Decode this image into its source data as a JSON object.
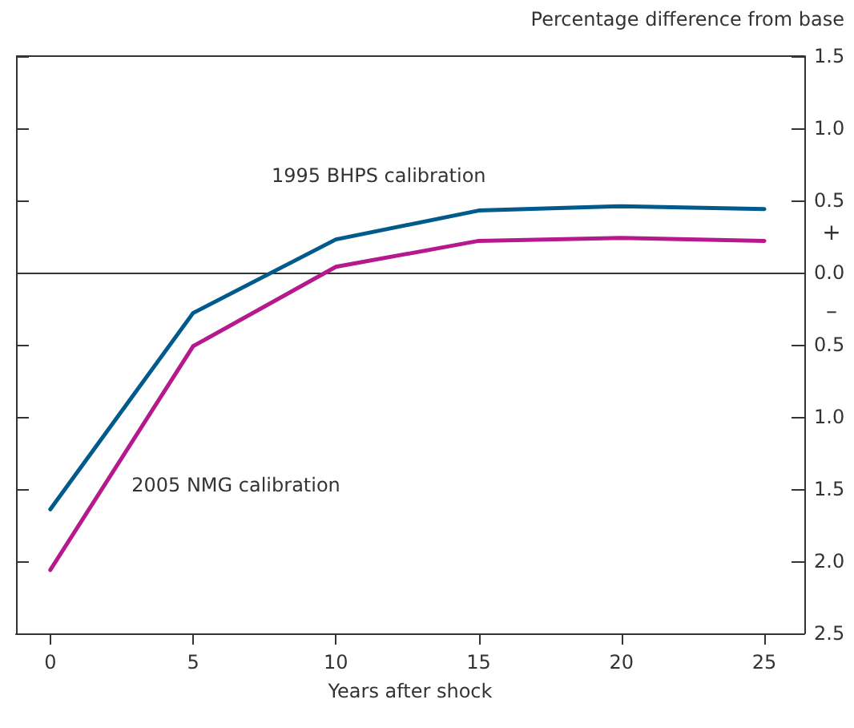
{
  "chart_data": {
    "type": "line",
    "ylabel": "Percentage difference from base",
    "xlabel": "Years after shock",
    "x": [
      0,
      5,
      10,
      15,
      20,
      25
    ],
    "series": [
      {
        "name": "1995 BHPS calibration",
        "color": "#005a8c",
        "values": [
          -1.64,
          -0.28,
          0.23,
          0.43,
          0.46,
          0.44
        ]
      },
      {
        "name": "2005 NMG calibration",
        "color": "#b5198c",
        "values": [
          -2.06,
          -0.51,
          0.04,
          0.22,
          0.24,
          0.22
        ]
      }
    ],
    "xlim": [
      -1.2,
      26.4
    ],
    "xticks": [
      0,
      5,
      10,
      15,
      20,
      25
    ],
    "ylim": [
      -2.5,
      1.5
    ],
    "yticks": [
      1.5,
      {
        "value": 1,
        "label": "1.0"
      },
      0.5,
      {
        "value": 0,
        "label": "0.0"
      },
      {
        "value": -0.5,
        "label": "0.5"
      },
      {
        "value": -1.0,
        "label": "1.0"
      },
      {
        "value": -1.5,
        "label": "1.5"
      },
      {
        "value": -2.0,
        "label": "2.0"
      },
      {
        "value": -2.5,
        "label": "2.5"
      }
    ],
    "ref_lines": [
      {
        "axis": "y",
        "value": 0,
        "color": "#333333"
      }
    ],
    "annotations": [
      "+",
      "–"
    ],
    "grid": false,
    "legend": false,
    "marker": "none",
    "line_style": "solid"
  }
}
